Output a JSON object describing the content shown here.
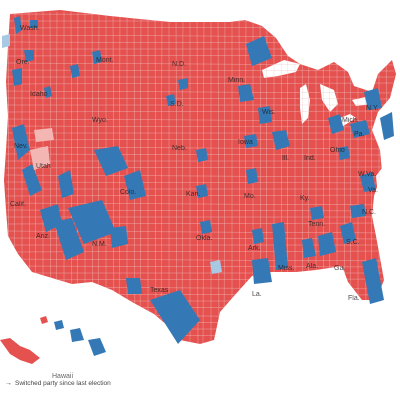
{
  "colors": {
    "republican": "#e4514f",
    "democrat": "#3479b6",
    "flipped_republican": "#f4b6b3",
    "flipped_democrat": "#a8c9e4",
    "border": "#f7d6d4",
    "water": "#ffffff",
    "county_line": "#f2c7c5"
  },
  "states": [
    {
      "id": "idaho",
      "label": "Idaho"
    },
    {
      "id": "mont",
      "label": "Mont."
    },
    {
      "id": "nd",
      "label": "N.D."
    },
    {
      "id": "minn",
      "label": "Minn."
    },
    {
      "id": "sd",
      "label": "S.D."
    },
    {
      "id": "wyo",
      "label": "Wyo."
    },
    {
      "id": "neb",
      "label": "Neb."
    },
    {
      "id": "iowa",
      "label": "Iowa"
    },
    {
      "id": "utah",
      "label": "Utah"
    },
    {
      "id": "colo",
      "label": "Colo."
    },
    {
      "id": "kan",
      "label": "Kan."
    },
    {
      "id": "mo",
      "label": "Mo."
    },
    {
      "id": "ill",
      "label": "Ill."
    },
    {
      "id": "ind",
      "label": "Ind."
    },
    {
      "id": "ohio",
      "label": "Ohio"
    },
    {
      "id": "wva",
      "label": "W.Va."
    },
    {
      "id": "mich",
      "label": "Mich."
    },
    {
      "id": "wis",
      "label": "Wis."
    },
    {
      "id": "ariz",
      "label": "Ariz."
    },
    {
      "id": "nm",
      "label": "N.M."
    },
    {
      "id": "okla",
      "label": "Okla."
    },
    {
      "id": "ark",
      "label": "Ark."
    },
    {
      "id": "tenn",
      "label": "Tenn."
    },
    {
      "id": "texas",
      "label": "Texas"
    },
    {
      "id": "la",
      "label": "La."
    },
    {
      "id": "miss",
      "label": "Miss."
    },
    {
      "id": "ala",
      "label": "Ala."
    },
    {
      "id": "ga",
      "label": "Ga."
    },
    {
      "id": "nc",
      "label": "N.C."
    },
    {
      "id": "sc",
      "label": "S.C."
    },
    {
      "id": "va",
      "label": "Va."
    },
    {
      "id": "ky",
      "label": "Ky."
    },
    {
      "id": "pa",
      "label": "Pa."
    },
    {
      "id": "ny",
      "label": "N.Y."
    },
    {
      "id": "fla",
      "label": "Fla."
    },
    {
      "id": "nev",
      "label": "Nev."
    },
    {
      "id": "calif",
      "label": "Calif."
    },
    {
      "id": "ore",
      "label": "Ore."
    },
    {
      "id": "wash",
      "label": "Wash."
    }
  ],
  "regions": {
    "hawaii": "Hawaii"
  },
  "legend": {
    "flip_label": "Switched party since last election"
  }
}
